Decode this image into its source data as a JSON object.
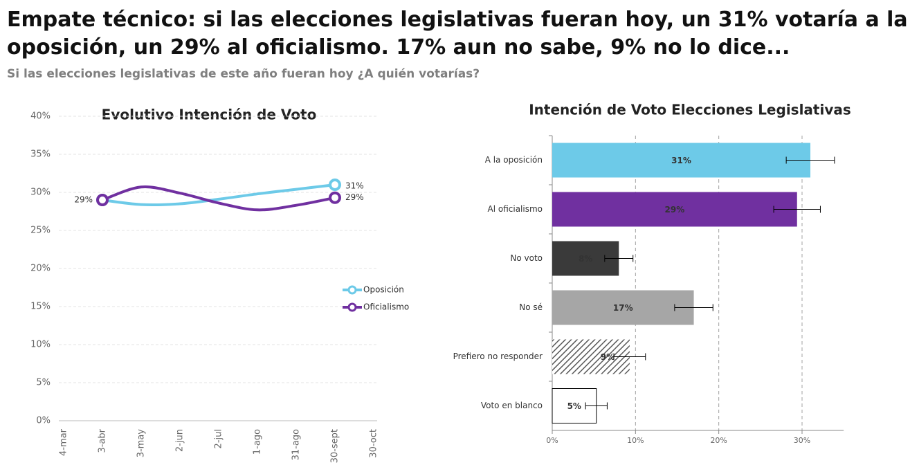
{
  "header": {
    "title": "Empate técnico: si las elecciones legislativas fueran hoy, un 31% votaría a la oposición, un 29% al oficialismo. 17% aun no sabe, 9% no lo dice...",
    "subtitle": "Si las elecciones legislativas de este año fueran hoy ¿A quién votarías?"
  },
  "chart_data": [
    {
      "type": "line",
      "title": "Evolutivo Intención de Voto",
      "categories": [
        "4-mar",
        "3-abr",
        "3-may",
        "2-jun",
        "2-jul",
        "1-ago",
        "31-ago",
        "30-sept",
        "30-oct"
      ],
      "series": [
        {
          "name": "Oposición",
          "color": "#6dcae8",
          "values": [
            null,
            29,
            28.4,
            28.5,
            29.1,
            29.8,
            30.4,
            31,
            null
          ],
          "value_labels": [
            null,
            "29%",
            null,
            null,
            null,
            null,
            null,
            "31%",
            null
          ]
        },
        {
          "name": "Oficialismo",
          "color": "#7030a0",
          "values": [
            null,
            29,
            30.7,
            29.9,
            28.6,
            27.7,
            28.3,
            29.3,
            null
          ],
          "value_labels": [
            null,
            null,
            null,
            null,
            null,
            null,
            null,
            "29%",
            null
          ]
        }
      ],
      "ylim": [
        0,
        40
      ],
      "yticks": [
        {
          "value": 0,
          "label": "0%"
        },
        {
          "value": 5,
          "label": "5%"
        },
        {
          "value": 10,
          "label": "10%"
        },
        {
          "value": 15,
          "label": "15%"
        },
        {
          "value": 20,
          "label": "20%"
        },
        {
          "value": 25,
          "label": "25%"
        },
        {
          "value": 30,
          "label": "30%"
        },
        {
          "value": 35,
          "label": "35%"
        },
        {
          "value": 40,
          "label": "40%"
        }
      ],
      "grid": true,
      "legend": "right"
    },
    {
      "type": "bar",
      "orientation": "horizontal",
      "title": "Intención de Voto Elecciones Legislativas",
      "categories": [
        "A la oposición",
        "Al oficialismo",
        "No voto",
        "No sé",
        "Prefiero no responder",
        "Voto en blanco"
      ],
      "values": [
        31,
        29.4,
        8,
        17,
        9.3,
        5.3
      ],
      "value_labels": [
        "31%",
        "29%",
        "8%",
        "17%",
        "9%",
        "5%"
      ],
      "errors": [
        2.9,
        2.8,
        1.7,
        2.3,
        1.9,
        1.3
      ],
      "colors": [
        "#6dcae8",
        "#7030a0",
        "#3a3a3a",
        "#a6a6a6",
        "#595959",
        "#000000"
      ],
      "styles": [
        "solid",
        "solid",
        "solid",
        "solid",
        "hatched",
        "outline"
      ],
      "xlim": [
        0,
        35
      ],
      "xticks": [
        {
          "value": 0,
          "label": "0%"
        },
        {
          "value": 10,
          "label": "10%"
        },
        {
          "value": 20,
          "label": "20%"
        },
        {
          "value": 30,
          "label": "30%"
        }
      ],
      "grid": true
    }
  ]
}
